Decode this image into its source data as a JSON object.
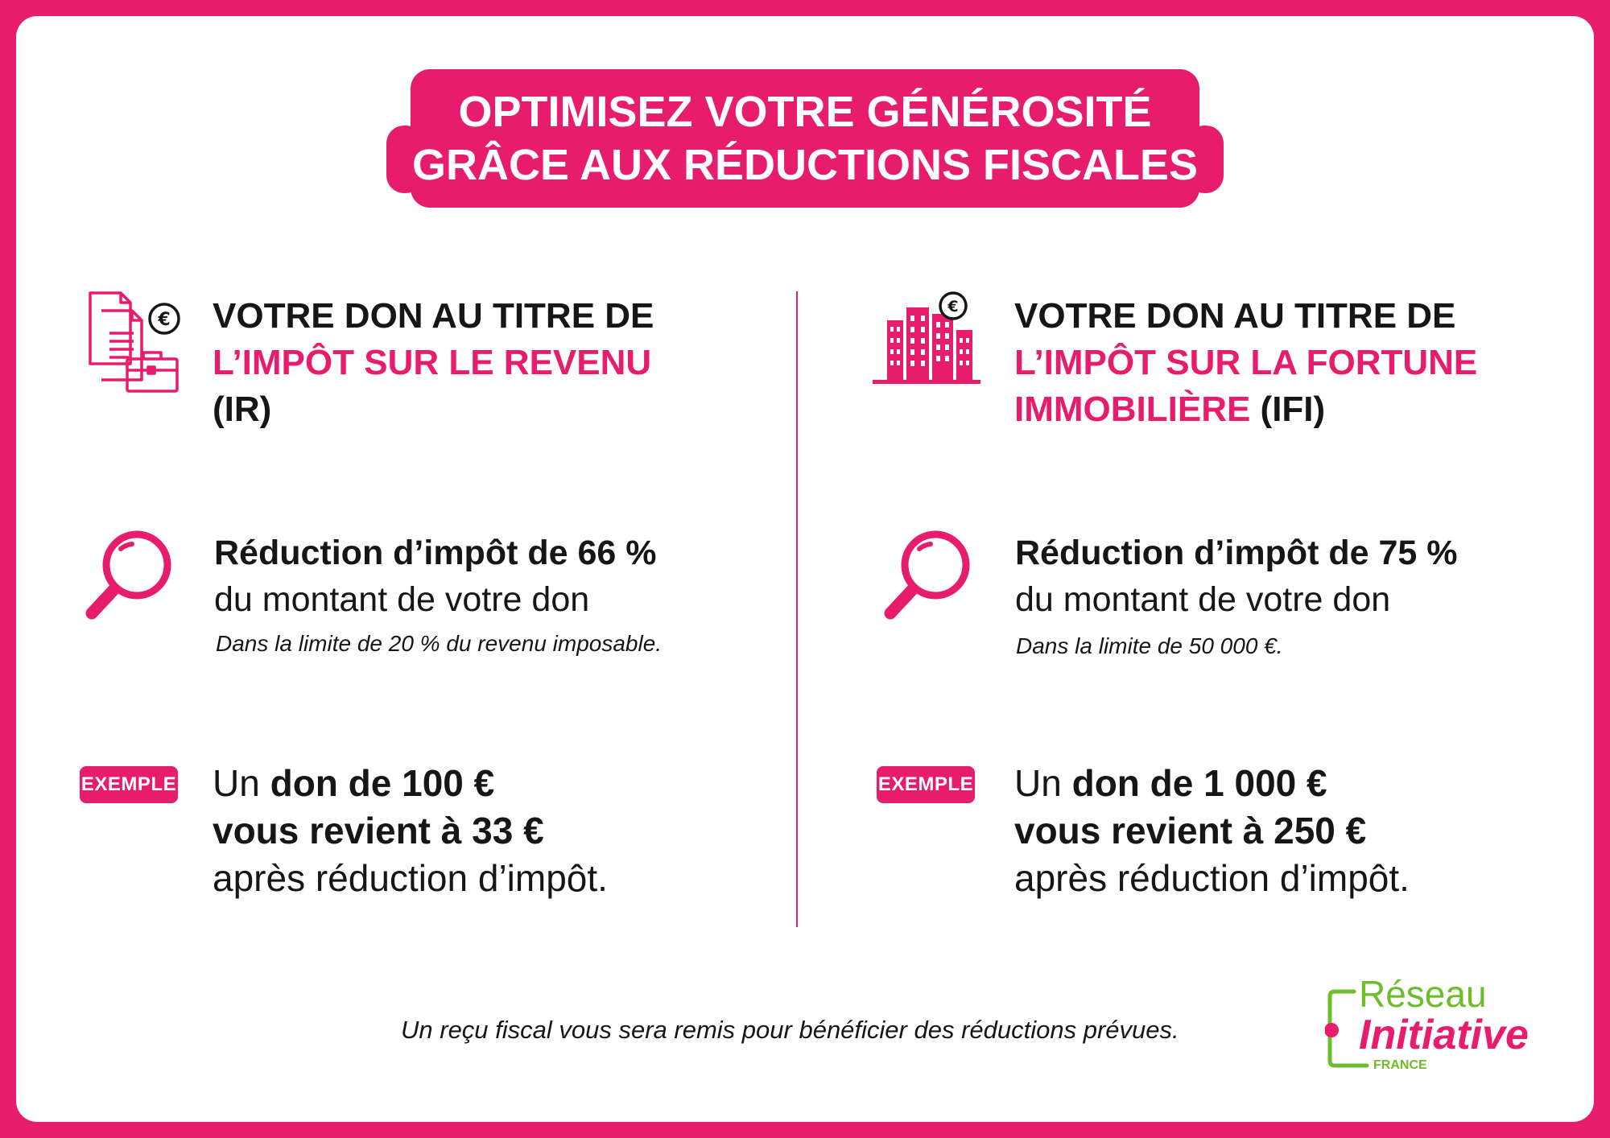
{
  "title": {
    "line1": "OPTIMISEZ VOTRE GÉNÉROSITÉ",
    "line2": "GRÂCE AUX RÉDUCTIONS FISCALES"
  },
  "left": {
    "heading_line1": "VOTRE DON AU TITRE DE",
    "heading_line2": "L’IMPÔT SUR LE REVENU",
    "heading_line3": "(IR)",
    "rate_bold": "Réduction d’impôt de 66 %",
    "rate_text": "du montant de votre don",
    "limit_note": "Dans la limite de 20 % du revenu imposable.",
    "example_badge": "EXEMPLE",
    "example_prefix": "Un ",
    "example_bold1": "don de 100 €",
    "example_bold2": "vous revient à 33 €",
    "example_text": "après réduction d’impôt."
  },
  "right": {
    "heading_line1": "VOTRE DON AU TITRE DE",
    "heading_line2": "L’IMPÔT SUR LA FORTUNE",
    "heading_line3_pink": "IMMOBILIÈRE",
    "heading_line3_dark": " (IFI)",
    "rate_bold": "Réduction d’impôt de 75 %",
    "rate_text": "du montant de votre don",
    "limit_note": "Dans la limite de 50 000 €.",
    "example_badge": "EXEMPLE",
    "example_prefix": "Un ",
    "example_bold1": "don de 1 000 €",
    "example_bold2": "vous revient à 250 €",
    "example_text": "après réduction d’impôt."
  },
  "footer": {
    "note": "Un reçu fiscal vous sera remis pour bénéficier des réductions prévues."
  },
  "logo": {
    "line1": "Réseau",
    "line2": "Initiative",
    "line3": "FRANCE"
  },
  "icons": {
    "left_heading": "documents-briefcase-euro-icon",
    "right_heading": "buildings-euro-icon",
    "magnifier": "magnifier-icon"
  },
  "colors": {
    "accent": "#E81C6C",
    "text": "#161616",
    "logo_green": "#6DBE2A"
  }
}
